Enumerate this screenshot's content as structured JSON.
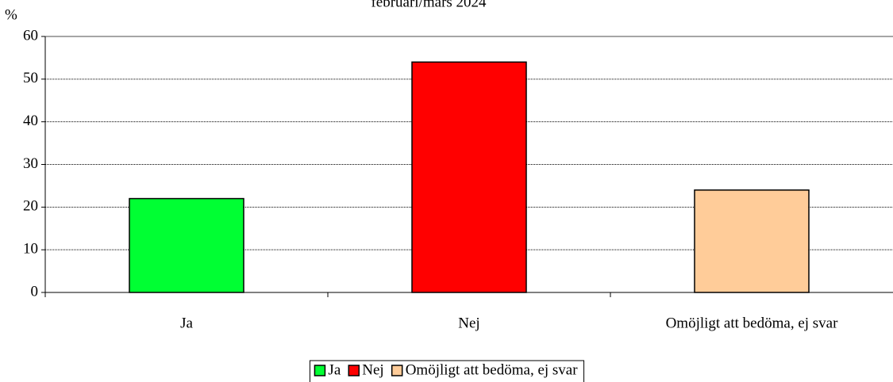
{
  "chart_data": {
    "type": "bar",
    "title": "februari/mars 2024",
    "y_label": "%",
    "categories": [
      "Ja",
      "Nej",
      "Omöjligt att bedöma, ej svar"
    ],
    "values": [
      22,
      54,
      24
    ],
    "colors": [
      "#00ff33",
      "#ff0000",
      "#ffcc99"
    ],
    "ylim": [
      0,
      60
    ],
    "yticks": [
      0,
      10,
      20,
      30,
      40,
      50,
      60
    ],
    "grid": true,
    "legend": "bottom"
  }
}
